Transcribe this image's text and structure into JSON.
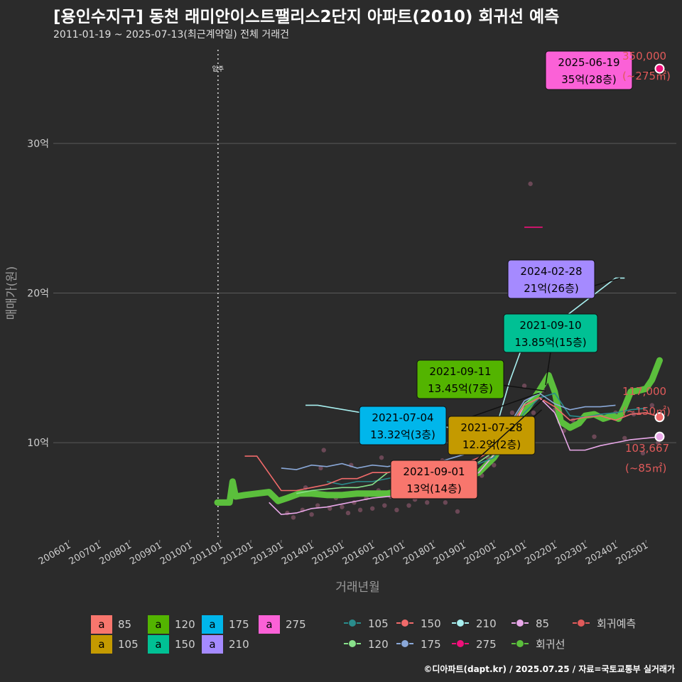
{
  "header": {
    "title": "[용인수지구] 동천 래미안이스트팰리스2단지 아파트(2010) 회귀선 예측",
    "subtitle": "2011-01-19 ~ 2025-07-13(최근계약일) 전체 거래건"
  },
  "footer": {
    "credit": "©디아파트(dapt.kr) / 2025.07.25 / 자료=국토교통부 실거래가"
  },
  "chart_data": {
    "type": "line",
    "xlabel": "거래년월",
    "ylabel": "매매가(원)",
    "x_ticks": [
      "200601",
      "200701",
      "200801",
      "200901",
      "201001",
      "201101",
      "201201",
      "201301",
      "201401",
      "201501",
      "201601",
      "201701",
      "201801",
      "201901",
      "202001",
      "202101",
      "202201",
      "202301",
      "202401",
      "202501"
    ],
    "x_range": [
      2005.5,
      2026.0
    ],
    "y_ticks": [
      {
        "value": 10,
        "label": "10억"
      },
      {
        "value": 20,
        "label": "20억"
      },
      {
        "value": 30,
        "label": "30억"
      }
    ],
    "y_range": [
      3.5,
      36.5
    ],
    "grid": true,
    "move_in_marker": {
      "x": 2010.92,
      "label": "입주"
    },
    "area_colors": {
      "85": "#f8766d",
      "105": "#c49a00",
      "120": "#53b400",
      "150": "#00c094",
      "175": "#00b6eb",
      "210": "#a58aff",
      "275": "#fb61d7"
    },
    "line_colors": {
      "85": "#e9a8e9",
      "105": "#2a8c8c",
      "120": "#88e08a",
      "150": "#f06a6a",
      "175": "#8aa8d8",
      "210": "#a8f0f0",
      "275": "#f0107a",
      "regression": "#5bbf3c",
      "forecast": "#e05a5a"
    },
    "series": [
      {
        "name": "85",
        "points": [
          [
            2012.6,
            6.0
          ],
          [
            2013.0,
            5.2
          ],
          [
            2013.5,
            5.3
          ],
          [
            2014.0,
            5.6
          ],
          [
            2014.5,
            5.7
          ],
          [
            2015.0,
            5.9
          ],
          [
            2015.5,
            6.1
          ],
          [
            2016.0,
            6.3
          ],
          [
            2016.5,
            6.4
          ],
          [
            2017.0,
            6.5
          ],
          [
            2017.5,
            6.5
          ],
          [
            2018.0,
            6.5
          ],
          [
            2018.5,
            6.8
          ],
          [
            2019.0,
            7.5
          ],
          [
            2019.5,
            8.0
          ],
          [
            2020.0,
            9.2
          ],
          [
            2020.5,
            10.5
          ],
          [
            2021.0,
            12.5
          ],
          [
            2021.5,
            13.0
          ],
          [
            2022.0,
            12.0
          ],
          [
            2022.5,
            9.5
          ],
          [
            2023.0,
            9.5
          ],
          [
            2023.5,
            9.8
          ],
          [
            2024.0,
            10.0
          ],
          [
            2024.5,
            10.2
          ],
          [
            2025.0,
            10.3
          ],
          [
            2025.5,
            10.4
          ]
        ]
      },
      {
        "name": "105",
        "points": [
          [
            2014.5,
            7.4
          ],
          [
            2015.0,
            7.2
          ],
          [
            2015.5,
            7.4
          ],
          [
            2016.0,
            7.4
          ],
          [
            2016.5,
            7.6
          ],
          [
            2017.0,
            7.8
          ],
          [
            2017.5,
            7.8
          ],
          [
            2018.0,
            8.0
          ],
          [
            2018.5,
            8.2
          ],
          [
            2019.0,
            8.3
          ],
          [
            2019.5,
            8.6
          ],
          [
            2020.0,
            9.0
          ],
          [
            2020.5,
            10.5
          ],
          [
            2021.0,
            12.0
          ],
          [
            2021.5,
            13.0
          ],
          [
            2022.0,
            13.3
          ],
          [
            2022.5,
            11.8
          ],
          [
            2023.0,
            11.7
          ],
          [
            2023.5,
            11.9
          ],
          [
            2024.0,
            12.0
          ],
          [
            2024.5,
            12.2
          ],
          [
            2025.0,
            12.3
          ]
        ]
      },
      {
        "name": "120",
        "points": [
          [
            2013.5,
            6.6
          ],
          [
            2014.0,
            6.8
          ],
          [
            2014.5,
            6.9
          ],
          [
            2015.0,
            7.0
          ],
          [
            2015.5,
            7.0
          ],
          [
            2016.0,
            7.2
          ],
          [
            2016.5,
            8.0
          ],
          [
            2017.0,
            8.2
          ],
          [
            2017.5,
            8.3
          ],
          [
            2018.0,
            8.2
          ],
          [
            2018.5,
            8.4
          ],
          [
            2019.0,
            8.5
          ],
          [
            2019.5,
            8.7
          ],
          [
            2020.0,
            9.4
          ],
          [
            2020.5,
            11.0
          ],
          [
            2021.0,
            12.6
          ],
          [
            2021.5,
            13.4
          ]
        ]
      },
      {
        "name": "150",
        "points": [
          [
            2011.8,
            9.1
          ],
          [
            2012.2,
            9.1
          ],
          [
            2013.0,
            6.8
          ],
          [
            2013.5,
            6.8
          ],
          [
            2014.0,
            7.0
          ],
          [
            2014.5,
            7.2
          ],
          [
            2015.0,
            7.6
          ],
          [
            2015.5,
            7.6
          ],
          [
            2016.0,
            8.0
          ],
          [
            2016.5,
            8.0
          ],
          [
            2017.0,
            8.2
          ],
          [
            2017.5,
            8.3
          ],
          [
            2018.0,
            8.5
          ],
          [
            2018.5,
            8.8
          ],
          [
            2019.0,
            8.6
          ],
          [
            2019.5,
            9.0
          ],
          [
            2020.0,
            9.5
          ],
          [
            2020.5,
            11.0
          ],
          [
            2021.0,
            12.5
          ],
          [
            2021.5,
            13.0
          ],
          [
            2022.0,
            12.4
          ],
          [
            2022.5,
            11.5
          ],
          [
            2023.0,
            11.7
          ],
          [
            2023.5,
            11.8
          ],
          [
            2024.0,
            11.5
          ],
          [
            2024.5,
            11.9
          ],
          [
            2025.0,
            12.0
          ],
          [
            2025.5,
            11.7
          ]
        ]
      },
      {
        "name": "175",
        "points": [
          [
            2013.0,
            8.3
          ],
          [
            2013.5,
            8.2
          ],
          [
            2014.0,
            8.5
          ],
          [
            2014.5,
            8.4
          ],
          [
            2015.0,
            8.6
          ],
          [
            2015.5,
            8.3
          ],
          [
            2016.0,
            8.5
          ],
          [
            2016.5,
            8.4
          ],
          [
            2017.0,
            8.6
          ],
          [
            2017.5,
            8.7
          ],
          [
            2018.0,
            8.6
          ],
          [
            2018.5,
            8.9
          ],
          [
            2019.0,
            9.2
          ],
          [
            2019.5,
            9.5
          ],
          [
            2020.0,
            10.0
          ],
          [
            2020.5,
            11.2
          ],
          [
            2021.0,
            12.8
          ],
          [
            2021.5,
            13.3
          ],
          [
            2022.0,
            12.6
          ],
          [
            2022.5,
            12.2
          ],
          [
            2023.0,
            12.4
          ],
          [
            2023.5,
            12.4
          ],
          [
            2024.0,
            12.5
          ]
        ]
      },
      {
        "name": "210",
        "points": [
          [
            2013.8,
            12.5
          ],
          [
            2014.2,
            12.5
          ],
          [
            2020.0,
            10.5
          ],
          [
            2020.5,
            14.0
          ],
          [
            2021.0,
            16.8
          ],
          [
            2021.3,
            16.8
          ],
          [
            2024.0,
            21.0
          ],
          [
            2024.3,
            21.0
          ]
        ]
      },
      {
        "name": "275",
        "points": [
          [
            2021.0,
            24.4
          ],
          [
            2021.6,
            24.4
          ]
        ]
      }
    ],
    "scatter_points": [
      [
        2013.2,
        5.3
      ],
      [
        2013.4,
        5.0
      ],
      [
        2013.7,
        5.5
      ],
      [
        2014.0,
        5.2
      ],
      [
        2014.2,
        5.8
      ],
      [
        2014.4,
        9.5
      ],
      [
        2014.6,
        5.6
      ],
      [
        2014.8,
        6.3
      ],
      [
        2015.0,
        5.7
      ],
      [
        2015.2,
        5.3
      ],
      [
        2015.4,
        6.0
      ],
      [
        2015.6,
        5.5
      ],
      [
        2015.8,
        6.3
      ],
      [
        2016.0,
        5.6
      ],
      [
        2016.2,
        6.8
      ],
      [
        2016.4,
        5.8
      ],
      [
        2016.6,
        6.4
      ],
      [
        2016.8,
        5.5
      ],
      [
        2017.0,
        6.7
      ],
      [
        2017.2,
        5.8
      ],
      [
        2017.4,
        6.2
      ],
      [
        2017.6,
        7.0
      ],
      [
        2017.8,
        6.0
      ],
      [
        2018.0,
        6.5
      ],
      [
        2018.2,
        7.2
      ],
      [
        2018.4,
        6.0
      ],
      [
        2018.6,
        6.8
      ],
      [
        2018.8,
        5.4
      ],
      [
        2019.0,
        7.6
      ],
      [
        2019.2,
        6.5
      ],
      [
        2019.4,
        8.4
      ],
      [
        2019.6,
        7.8
      ],
      [
        2019.8,
        9.0
      ],
      [
        2020.0,
        8.5
      ],
      [
        2020.2,
        10.0
      ],
      [
        2020.4,
        11.0
      ],
      [
        2020.6,
        12.0
      ],
      [
        2021.2,
        27.3
      ],
      [
        2021.0,
        13.8
      ],
      [
        2021.3,
        12.0
      ],
      [
        2021.6,
        13.5
      ],
      [
        2022.0,
        12.2
      ],
      [
        2022.3,
        10.8
      ],
      [
        2022.6,
        11.5
      ],
      [
        2023.0,
        11.8
      ],
      [
        2023.3,
        10.4
      ],
      [
        2023.6,
        11.7
      ],
      [
        2024.0,
        12.0
      ],
      [
        2024.3,
        10.3
      ],
      [
        2024.6,
        11.9
      ],
      [
        2024.9,
        9.3
      ],
      [
        2025.2,
        12.5
      ],
      [
        2025.4,
        10.0
      ],
      [
        2013.8,
        7.0
      ],
      [
        2014.3,
        8.3
      ],
      [
        2015.3,
        8.5
      ],
      [
        2016.3,
        9.0
      ],
      [
        2017.3,
        8.0
      ],
      [
        2018.3,
        8.8
      ]
    ],
    "regression_points": [
      [
        2010.9,
        6.0
      ],
      [
        2011.3,
        6.0
      ],
      [
        2011.4,
        7.4
      ],
      [
        2011.5,
        6.4
      ],
      [
        2011.8,
        6.5
      ],
      [
        2012.2,
        6.6
      ],
      [
        2012.6,
        6.7
      ],
      [
        2012.9,
        6.1
      ],
      [
        2013.2,
        6.3
      ],
      [
        2013.6,
        6.6
      ],
      [
        2014.0,
        6.6
      ],
      [
        2014.5,
        6.5
      ],
      [
        2015.0,
        6.5
      ],
      [
        2015.5,
        6.6
      ],
      [
        2016.0,
        6.6
      ],
      [
        2016.5,
        6.6
      ],
      [
        2017.0,
        6.8
      ],
      [
        2017.5,
        7.0
      ],
      [
        2018.0,
        7.2
      ],
      [
        2018.5,
        7.4
      ],
      [
        2019.0,
        7.6
      ],
      [
        2019.5,
        8.0
      ],
      [
        2020.0,
        9.0
      ],
      [
        2020.5,
        10.5
      ],
      [
        2021.0,
        12.0
      ],
      [
        2021.5,
        13.5
      ],
      [
        2021.8,
        14.5
      ],
      [
        2022.0,
        13.4
      ],
      [
        2022.2,
        11.4
      ],
      [
        2022.5,
        11.0
      ],
      [
        2022.8,
        11.3
      ],
      [
        2023.0,
        11.8
      ],
      [
        2023.3,
        11.9
      ],
      [
        2023.6,
        11.6
      ],
      [
        2023.9,
        11.8
      ],
      [
        2024.1,
        11.6
      ],
      [
        2024.3,
        12.4
      ],
      [
        2024.5,
        13.4
      ],
      [
        2024.8,
        13.5
      ],
      [
        2025.0,
        13.6
      ],
      [
        2025.2,
        14.2
      ],
      [
        2025.45,
        15.5
      ]
    ],
    "forecast_points": [
      {
        "x": 2025.45,
        "y": 35.0,
        "series": "275",
        "price_label": "350,000",
        "area_label": "(~275㎡)"
      },
      {
        "x": 2025.45,
        "y": 11.7,
        "series": "150",
        "price_label": "117,000",
        "area_label": "(~150㎡)"
      },
      {
        "x": 2025.45,
        "y": 10.4,
        "series": "85",
        "price_label": "103,667",
        "area_label": "(~85㎡)"
      }
    ],
    "callouts": [
      {
        "date": "2025-06-19",
        "price": "35억(28층)",
        "series": "275",
        "x": 2025.45,
        "y": 35.0,
        "text_color": "#000000"
      },
      {
        "date": "2024-02-28",
        "price": "21억(26층)",
        "series": "210",
        "x": 2024.15,
        "y": 21.0,
        "text_color": "#000000"
      },
      {
        "date": "2021-09-10",
        "price": "13.85억(15층)",
        "series": "150",
        "x": 2021.7,
        "y": 13.85,
        "text_color": "#000000"
      },
      {
        "date": "2021-09-11",
        "price": "13.45억(7층)",
        "series": "120",
        "x": 2021.7,
        "y": 13.45,
        "text_color": "#000000"
      },
      {
        "date": "2021-07-04",
        "price": "13.32억(3층)",
        "series": "175",
        "x": 2021.5,
        "y": 13.32,
        "text_color": "#000000"
      },
      {
        "date": "2021-07-28",
        "price": "12.2억(2층)",
        "series": "105",
        "x": 2021.57,
        "y": 12.2,
        "text_color": "#000000"
      },
      {
        "date": "2021-09-01",
        "price": "13억(14층)",
        "series": "85",
        "x": 2021.67,
        "y": 13.0,
        "text_color": "#000000"
      }
    ],
    "legend_area": {
      "letter": "a",
      "items": [
        "85",
        "120",
        "175",
        "275",
        "105",
        "150",
        "210"
      ]
    },
    "legend_lines": {
      "items": [
        "105",
        "150",
        "210",
        "85",
        "회귀예측",
        "120",
        "175",
        "275",
        "회귀선"
      ]
    }
  }
}
